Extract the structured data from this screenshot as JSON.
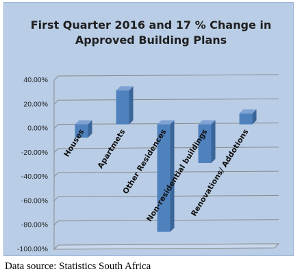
{
  "chart_data": {
    "type": "bar",
    "title_lines": [
      "First Quarter 2016 and 17 % Change in",
      "Approved Building Plans"
    ],
    "categories": [
      "Houses",
      "Apartmets",
      "Other Residences",
      "Non-residential buildings",
      "Renovations/ Addotions"
    ],
    "values": [
      -11.0,
      28.0,
      -89.0,
      -32.0,
      9.0
    ],
    "ylim": [
      -100,
      40
    ],
    "yticks": [
      40,
      20,
      0,
      -20,
      -40,
      -60,
      -80,
      -100
    ],
    "ytick_labels": [
      "40.00%",
      "20.00%",
      "0.00%",
      "-20.00%",
      "-40.00%",
      "-60.00%",
      "-80.00%",
      "-100.00%"
    ],
    "grid": true,
    "legend": "none",
    "bar_color": "#4f81bd",
    "bar_side_color": "#3a6598",
    "bar_top_color": "#7ea2d2"
  },
  "footer": {
    "source": "Data source: Statistics South Africa"
  }
}
